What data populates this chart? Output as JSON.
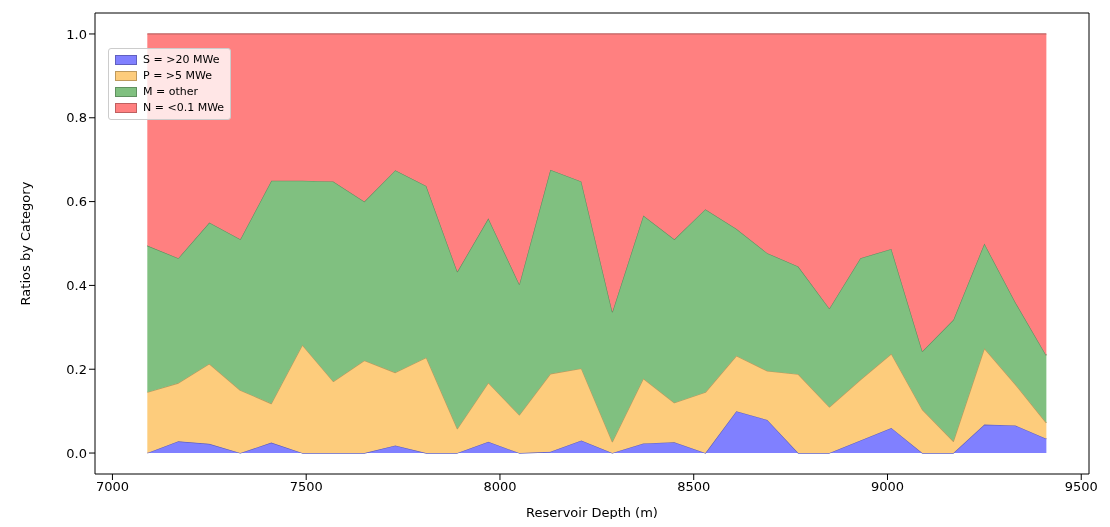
{
  "chart_data": {
    "type": "area",
    "stacked": true,
    "xlabel": "Reservoir Depth (m)",
    "ylabel": "Ratios by Category",
    "x": [
      7090,
      7170,
      7250,
      7330,
      7410,
      7490,
      7570,
      7650,
      7730,
      7810,
      7890,
      7970,
      8050,
      8130,
      8210,
      8290,
      8370,
      8450,
      8530,
      8610,
      8690,
      8770,
      8850,
      8930,
      9010,
      9090,
      9170,
      9250,
      9330,
      9410
    ],
    "series": [
      {
        "name": "S = >20 MWe",
        "color": "#8080ff",
        "values": [
          0,
          0.028,
          0.022,
          0,
          0.025,
          0,
          0,
          0,
          0.018,
          0,
          0,
          0.027,
          0,
          0.003,
          0.03,
          0,
          0.023,
          0.026,
          0,
          0.1,
          0.079,
          0,
          0,
          0.03,
          0.06,
          0,
          0,
          0.068,
          0.066,
          0.034
        ]
      },
      {
        "name": "P = >5 MWe",
        "color": "#fdcc7c",
        "values": [
          0.145,
          0.139,
          0.191,
          0.15,
          0.093,
          0.258,
          0.171,
          0.221,
          0.174,
          0.228,
          0.058,
          0.141,
          0.091,
          0.186,
          0.172,
          0.027,
          0.155,
          0.094,
          0.145,
          0.132,
          0.117,
          0.188,
          0.11,
          0.145,
          0.177,
          0.104,
          0.028,
          0.182,
          0.098,
          0.038
        ]
      },
      {
        "name": "M = other",
        "color": "#80c080",
        "values": [
          0.35,
          0.298,
          0.337,
          0.36,
          0.532,
          0.392,
          0.477,
          0.379,
          0.483,
          0.409,
          0.375,
          0.392,
          0.312,
          0.487,
          0.446,
          0.31,
          0.389,
          0.39,
          0.437,
          0.303,
          0.281,
          0.257,
          0.235,
          0.29,
          0.25,
          0.139,
          0.29,
          0.25,
          0.196,
          0.161
        ]
      },
      {
        "name": "N = <0.1 MWe",
        "color": "#ff8080",
        "values": [
          0.505,
          0.535,
          0.45,
          0.49,
          0.35,
          0.35,
          0.352,
          0.4,
          0.325,
          0.363,
          0.567,
          0.44,
          0.597,
          0.324,
          0.352,
          0.663,
          0.433,
          0.49,
          0.418,
          0.465,
          0.523,
          0.555,
          0.655,
          0.535,
          0.513,
          0.757,
          0.682,
          0.5,
          0.64,
          0.767
        ]
      }
    ],
    "xlim": [
      6955,
      9520
    ],
    "xticks": [
      7000,
      7500,
      8000,
      8500,
      9000,
      9500
    ],
    "ylim": [
      -0.05,
      1.05
    ],
    "yticks": [
      {
        "value": 0,
        "label": "0.0"
      },
      {
        "value": 0.2,
        "label": "0.2"
      },
      {
        "value": 0.4,
        "label": "0.4"
      },
      {
        "value": 0.6,
        "label": "0.6"
      },
      {
        "value": 0.8,
        "label": "0.8"
      },
      {
        "value": 1,
        "label": "1.0"
      }
    ],
    "legend": "top left",
    "grid": false
  }
}
